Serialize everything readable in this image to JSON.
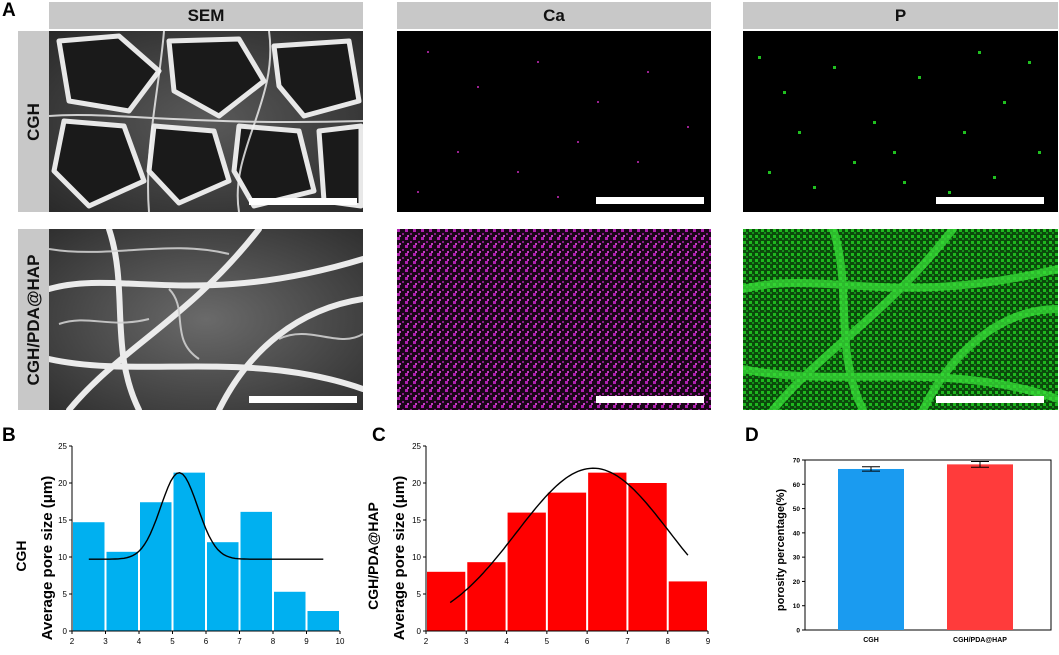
{
  "figure": {
    "panel_a": "A",
    "panel_b": "B",
    "panel_c": "C",
    "panel_d": "D",
    "columns": [
      "SEM",
      "Ca",
      "P"
    ],
    "rows": [
      "CGH",
      "CGH/PDA@HAP"
    ]
  },
  "colors": {
    "chart_b_bar": "#00b0f0",
    "chart_c_bar": "#ff0000",
    "chart_d_bar1": "#1a9bf0",
    "chart_d_bar2": "#ff3b3b",
    "ca_signal": "#b020b0",
    "p_signal": "#20d020"
  },
  "chart_data": [
    {
      "type": "bar",
      "panel": "B",
      "ylabel_line1": "CGH",
      "ylabel_line2": "Average pore size (μm)",
      "x": [
        2.5,
        3.5,
        4.5,
        5.5,
        6.5,
        7.5,
        8.5,
        9.5
      ],
      "values": [
        14.7,
        10.7,
        17.4,
        21.4,
        12.0,
        16.1,
        5.3,
        2.7
      ],
      "bin_width": 1,
      "xlim": [
        2,
        10
      ],
      "ylim": [
        0,
        25
      ],
      "xticks": [
        "2",
        "3",
        "4",
        "5",
        "6",
        "7",
        "8",
        "9",
        "10"
      ],
      "yticks": [
        "0",
        "5",
        "10",
        "15",
        "20",
        "25"
      ],
      "fit_curve": {
        "baseline": 9.7,
        "amplitude": 11.7,
        "center": 5.2,
        "sigma": 0.55,
        "x_range": [
          2.5,
          9.5
        ]
      }
    },
    {
      "type": "bar",
      "panel": "C",
      "ylabel_line1": "CGH/PDA@HAP",
      "ylabel_line2": "Average pore size (μm)",
      "x": [
        2.5,
        3.5,
        4.5,
        5.5,
        6.5,
        7.5,
        8.5
      ],
      "values": [
        8.0,
        9.3,
        16.0,
        18.7,
        21.4,
        20.0,
        6.7
      ],
      "bin_width": 1,
      "xlim": [
        2,
        9
      ],
      "ylim": [
        0,
        25
      ],
      "xticks": [
        "2",
        "3",
        "4",
        "5",
        "6",
        "7",
        "8",
        "9"
      ],
      "yticks": [
        "0",
        "5",
        "10",
        "15",
        "20",
        "25"
      ],
      "fit_curve": {
        "baseline": 0,
        "amplitude": 22.0,
        "center": 6.15,
        "sigma": 1.9,
        "x_range": [
          2.6,
          8.5
        ]
      }
    },
    {
      "type": "bar",
      "panel": "D",
      "ylabel": "porosity percentage(%)",
      "categories": [
        "CGH",
        "CGH/PDA@HAP"
      ],
      "values": [
        66.3,
        68.2
      ],
      "errors": [
        0.9,
        1.2
      ],
      "ylim": [
        0,
        70
      ],
      "yticks": [
        "0",
        "10",
        "20",
        "30",
        "40",
        "50",
        "60",
        "70"
      ]
    }
  ]
}
